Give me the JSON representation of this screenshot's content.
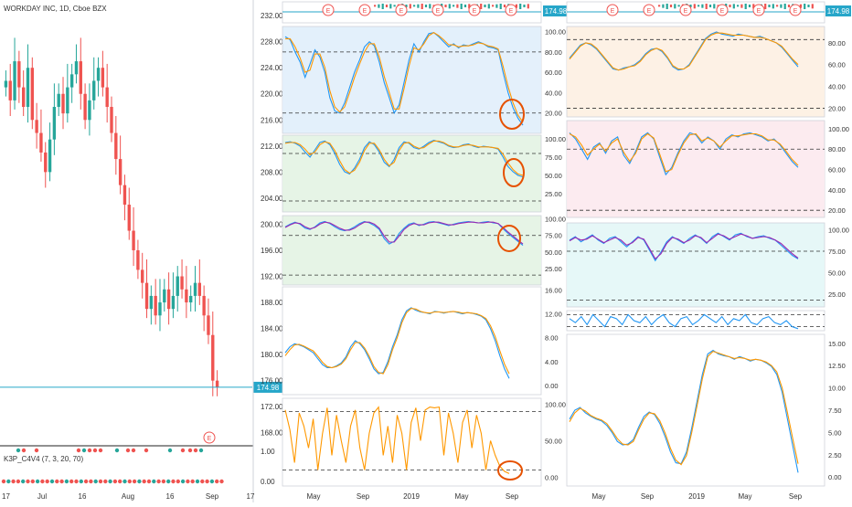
{
  "header": {
    "symbol_title": "WORKDAY INC, 1D, Cboe BZX"
  },
  "indicator": {
    "label": "K3P_C4V4 (7, 3, 20, 70)"
  },
  "colors": {
    "up": "#26a69a",
    "down": "#ef5350",
    "blue_line": "#2196f3",
    "orange_line": "#ff9800",
    "purple_line": "#9c27b0",
    "price_line": "#26a6c9",
    "circle": "#e65100",
    "grid_dash": "#333333"
  },
  "chart_data": [
    {
      "id": "main-price",
      "type": "candlestick",
      "x_ticks": [
        "17",
        "Jul",
        "16",
        "Aug",
        "16",
        "Sep",
        "17"
      ],
      "y_ticks": [
        "232.00",
        "228.00",
        "224.00",
        "220.00",
        "216.00",
        "212.00",
        "208.00",
        "204.00",
        "200.00",
        "196.00",
        "192.00",
        "188.00",
        "184.00",
        "180.00",
        "176.00",
        "172.00",
        "168.00"
      ],
      "ylim": [
        166,
        233
      ],
      "last_price": 174.98,
      "last_price_label": "174.98",
      "earnings_marker": "E",
      "closes": [
        222,
        219,
        225,
        221,
        218,
        224,
        216,
        214,
        211,
        208,
        213,
        218,
        220,
        217,
        221,
        223,
        225,
        220,
        216,
        219,
        222,
        224,
        221,
        218,
        214,
        210,
        206,
        203,
        199,
        196,
        193,
        191,
        187,
        189,
        186,
        188,
        190,
        187,
        189,
        192,
        190,
        188,
        189,
        191,
        189,
        186,
        183,
        176,
        175
      ],
      "indicator_label": "K3P_C4V4 (7, 3, 20, 70)",
      "indicator_ticks": [
        "1.00",
        "0.00"
      ]
    },
    {
      "id": "top-mini-price-left",
      "type": "line",
      "label": "174.98",
      "earnings_markers": [
        "E",
        "E",
        "E",
        "E",
        "E",
        "E"
      ]
    },
    {
      "id": "top-mini-price-right",
      "type": "line",
      "label": "174.98",
      "earnings_markers": [
        "E",
        "E",
        "E",
        "E",
        "E",
        "E"
      ]
    },
    {
      "id": "stoch-left-1",
      "type": "line",
      "y_ticks": [
        "100.00",
        "80.00",
        "60.00",
        "40.00",
        "20.00"
      ],
      "ylim": [
        0,
        105
      ],
      "levels": [
        80,
        20
      ],
      "fill": "#e3f0fb",
      "series": [
        {
          "values": [
            95,
            92,
            80,
            70,
            55,
            68,
            82,
            75,
            60,
            35,
            22,
            20,
            30,
            45,
            60,
            72,
            85,
            90,
            86,
            70,
            50,
            35,
            20,
            28,
            50,
            72,
            88,
            80,
            90,
            98,
            99,
            95,
            90,
            85,
            88,
            84,
            87,
            86,
            88,
            90,
            88,
            85,
            84,
            82,
            60,
            40,
            25,
            15,
            8
          ]
        },
        {
          "values": [
            93,
            93,
            85,
            74,
            60,
            62,
            78,
            78,
            65,
            42,
            26,
            21,
            26,
            40,
            55,
            68,
            80,
            88,
            88,
            75,
            56,
            40,
            24,
            24,
            44,
            66,
            84,
            82,
            88,
            96,
            99,
            96,
            92,
            87,
            87,
            85,
            86,
            86,
            87,
            89,
            88,
            86,
            85,
            83,
            66,
            46,
            30,
            18,
            11
          ]
        }
      ]
    },
    {
      "id": "stoch-left-2",
      "type": "line",
      "y_ticks": [
        "100.00",
        "75.00",
        "50.00",
        "25.00"
      ],
      "ylim": [
        0,
        105
      ],
      "levels": [
        80,
        15
      ],
      "fill": "#e6f4e6",
      "series": [
        {
          "values": [
            95,
            96,
            94,
            90,
            82,
            75,
            85,
            95,
            97,
            92,
            80,
            65,
            55,
            52,
            60,
            72,
            88,
            96,
            92,
            82,
            68,
            62,
            72,
            88,
            96,
            94,
            88,
            86,
            90,
            95,
            98,
            96,
            94,
            90,
            88,
            89,
            92,
            93,
            90,
            88,
            90,
            89,
            88,
            86,
            75,
            62,
            55,
            50,
            48
          ]
        },
        {
          "values": [
            94,
            95,
            95,
            92,
            86,
            78,
            82,
            92,
            96,
            94,
            84,
            70,
            58,
            53,
            57,
            68,
            84,
            94,
            94,
            85,
            72,
            63,
            68,
            84,
            94,
            95,
            90,
            87,
            88,
            93,
            97,
            97,
            95,
            91,
            89,
            89,
            91,
            92,
            91,
            89,
            89,
            89,
            88,
            87,
            79,
            67,
            58,
            52,
            50
          ]
        }
      ]
    },
    {
      "id": "stoch-left-3",
      "type": "line",
      "y_ticks": [
        "100.00",
        "75.00",
        "50.00",
        "25.00"
      ],
      "ylim": [
        0,
        105
      ],
      "levels": [
        75,
        15
      ],
      "fill": "#e6f4e6",
      "series": [
        {
          "values": [
            88,
            92,
            95,
            92,
            86,
            84,
            88,
            94,
            96,
            93,
            88,
            84,
            82,
            84,
            88,
            93,
            96,
            94,
            90,
            84,
            70,
            62,
            66,
            78,
            86,
            92,
            94,
            90,
            92,
            95,
            96,
            94,
            92,
            90,
            92,
            94,
            95,
            96,
            95,
            94,
            95,
            96,
            94,
            93,
            85,
            78,
            72,
            66,
            60
          ]
        },
        {
          "values": [
            87,
            91,
            94,
            93,
            88,
            85,
            87,
            92,
            95,
            94,
            90,
            86,
            83,
            83,
            86,
            91,
            95,
            95,
            92,
            86,
            74,
            65,
            65,
            74,
            84,
            90,
            93,
            91,
            91,
            94,
            95,
            95,
            93,
            91,
            91,
            93,
            94,
            95,
            95,
            94,
            94,
            95,
            95,
            93,
            87,
            80,
            74,
            68,
            62
          ]
        }
      ]
    },
    {
      "id": "macd-left",
      "type": "line",
      "y_ticks": [
        "16.00",
        "12.00",
        "8.00",
        "4.00",
        "0.00"
      ],
      "ylim": [
        -1.5,
        16.5
      ],
      "series": [
        {
          "values": [
            5.5,
            6.5,
            7,
            6.8,
            6.5,
            6,
            5.5,
            4.5,
            3.5,
            3,
            3,
            3.3,
            3.8,
            4.8,
            6.5,
            7.5,
            7,
            6,
            4.5,
            2.8,
            2,
            2.2,
            4,
            6.5,
            8.5,
            11,
            12.5,
            13,
            12.6,
            12.3,
            12.2,
            12,
            12.4,
            12.3,
            12.1,
            12.3,
            12.4,
            12.2,
            12,
            12.2,
            12.1,
            11.9,
            11.6,
            11,
            9.5,
            7.5,
            5,
            2.8,
            1.2
          ]
        },
        {
          "values": [
            5,
            6,
            6.8,
            6.9,
            6.6,
            6.2,
            5.8,
            4.9,
            3.9,
            3.2,
            3,
            3.2,
            3.6,
            4.5,
            6,
            7.2,
            7.2,
            6.3,
            4.9,
            3.2,
            2.2,
            2,
            3.5,
            6,
            8,
            10.5,
            12.2,
            12.9,
            12.8,
            12.4,
            12.2,
            12.1,
            12.3,
            12.3,
            12.2,
            12.3,
            12.4,
            12.3,
            12.1,
            12.2,
            12.1,
            12,
            11.7,
            11.2,
            10,
            8.2,
            5.8,
            3.6,
            2
          ]
        }
      ]
    },
    {
      "id": "osc-left-orange",
      "type": "line",
      "y_ticks": [
        "100.00",
        "50.00",
        "0.00"
      ],
      "ylim": [
        -12,
        108
      ],
      "levels": [
        90,
        10
      ],
      "series": [
        {
          "values": [
            92,
            65,
            20,
            88,
            70,
            40,
            80,
            10,
            60,
            95,
            30,
            85,
            50,
            20,
            70,
            92,
            40,
            10,
            60,
            88,
            96,
            30,
            70,
            20,
            85,
            60,
            10,
            75,
            95,
            50,
            92,
            96,
            95,
            96,
            30,
            88,
            60,
            20,
            75,
            92,
            40,
            85,
            60,
            10,
            50,
            30,
            15,
            8,
            5
          ]
        }
      ]
    },
    {
      "id": "stoch-right-1",
      "type": "line",
      "y_ticks": [
        "80.00",
        "60.00",
        "40.00",
        "20.00"
      ],
      "ylim": [
        12,
        95
      ],
      "levels": [
        83,
        20
      ],
      "fill": "#fdf1e4",
      "series": [
        {
          "values": [
            66,
            72,
            78,
            80,
            78,
            74,
            68,
            62,
            56,
            55,
            57,
            58,
            60,
            64,
            70,
            74,
            75,
            72,
            66,
            58,
            55,
            56,
            60,
            68,
            76,
            84,
            88,
            90,
            88,
            87,
            86,
            88,
            87,
            86,
            85,
            86,
            84,
            82,
            80,
            76,
            70,
            64,
            58
          ]
        },
        {
          "values": [
            65,
            71,
            77,
            80,
            79,
            75,
            69,
            63,
            57,
            55,
            56,
            58,
            59,
            63,
            69,
            73,
            75,
            73,
            67,
            59,
            56,
            56,
            59,
            67,
            75,
            83,
            87,
            89,
            89,
            88,
            87,
            87,
            87,
            86,
            85,
            85,
            84,
            82,
            80,
            77,
            71,
            65,
            60
          ]
        }
      ]
    },
    {
      "id": "stoch-right-2",
      "type": "line",
      "y_ticks": [
        "100.00",
        "80.00",
        "60.00",
        "40.00",
        "20.00"
      ],
      "ylim": [
        13,
        108
      ],
      "levels": [
        80,
        20
      ],
      "fill": "#fcebef",
      "series": [
        {
          "values": [
            96,
            90,
            80,
            70,
            82,
            86,
            76,
            88,
            92,
            74,
            66,
            78,
            92,
            96,
            90,
            72,
            55,
            62,
            76,
            88,
            96,
            94,
            86,
            92,
            88,
            80,
            90,
            94,
            92,
            95,
            96,
            94,
            92,
            88,
            90,
            84,
            76,
            68,
            62
          ]
        },
        {
          "values": [
            95,
            92,
            84,
            74,
            80,
            85,
            78,
            86,
            90,
            77,
            68,
            76,
            90,
            95,
            91,
            75,
            58,
            60,
            74,
            86,
            94,
            95,
            88,
            91,
            88,
            82,
            88,
            93,
            93,
            94,
            95,
            95,
            93,
            89,
            89,
            85,
            78,
            70,
            64
          ]
        }
      ]
    },
    {
      "id": "stoch-right-3",
      "type": "line",
      "y_ticks": [
        "100.00",
        "75.00",
        "50.00",
        "25.00"
      ],
      "ylim": [
        10,
        108
      ],
      "levels": [
        75,
        18
      ],
      "fill": "#e6f7f7",
      "series": [
        {
          "values": [
            88,
            92,
            86,
            90,
            94,
            88,
            84,
            90,
            92,
            86,
            80,
            86,
            92,
            88,
            76,
            64,
            74,
            86,
            92,
            88,
            84,
            90,
            94,
            90,
            84,
            92,
            96,
            92,
            88,
            94,
            96,
            92,
            90,
            92,
            93,
            90,
            88,
            82,
            76,
            70,
            66
          ]
        },
        {
          "values": [
            87,
            91,
            88,
            89,
            93,
            89,
            85,
            88,
            91,
            88,
            82,
            85,
            91,
            89,
            78,
            66,
            72,
            84,
            91,
            89,
            85,
            88,
            93,
            91,
            85,
            90,
            95,
            93,
            89,
            92,
            95,
            93,
            90,
            91,
            92,
            91,
            88,
            84,
            78,
            72,
            67
          ]
        }
      ]
    },
    {
      "id": "mini-osc-right",
      "type": "line",
      "levels": [
        80,
        20
      ],
      "series": [
        {
          "values": [
            60,
            40,
            70,
            30,
            80,
            50,
            20,
            70,
            60,
            30,
            80,
            50,
            40,
            70,
            30,
            60,
            80,
            40,
            20,
            60,
            70,
            30,
            50,
            80,
            60,
            40,
            70,
            30,
            60,
            50,
            80,
            40,
            30,
            60,
            70,
            40,
            30,
            50,
            20,
            10
          ]
        }
      ]
    },
    {
      "id": "macd-right",
      "type": "line",
      "y_ticks": [
        "15.00",
        "12.50",
        "10.00",
        "7.50",
        "5.00",
        "2.50",
        "0.00"
      ],
      "ylim": [
        -1,
        16
      ],
      "series": [
        {
          "values": [
            6.5,
            7.5,
            7.8,
            7.2,
            6.8,
            6.5,
            6.3,
            5.8,
            5,
            4,
            3.6,
            3.7,
            4.2,
            5.6,
            6.8,
            7.3,
            7,
            6,
            4.5,
            2.8,
            1.6,
            1.5,
            2.8,
            5.5,
            8.5,
            11.5,
            13.8,
            14.2,
            13.8,
            13.6,
            13.5,
            13.2,
            13.5,
            13.3,
            13,
            13.2,
            13.1,
            12.8,
            12.4,
            11.5,
            9.5,
            6.5,
            3.5,
            0.5
          ]
        },
        {
          "values": [
            6.2,
            7.2,
            7.7,
            7.4,
            6.9,
            6.6,
            6.4,
            6,
            5.2,
            4.3,
            3.7,
            3.6,
            4,
            5.3,
            6.5,
            7.2,
            7.1,
            6.3,
            4.9,
            3.2,
            1.9,
            1.4,
            2.4,
            5,
            8,
            11,
            13.5,
            14.1,
            13.9,
            13.7,
            13.5,
            13.3,
            13.4,
            13.3,
            13.1,
            13.2,
            13.1,
            12.9,
            12.5,
            11.8,
            10,
            7.2,
            4.3,
            1.5
          ]
        }
      ]
    }
  ],
  "axis_labels": {
    "middle_x": [
      "May",
      "Sep",
      "2019",
      "May",
      "Sep"
    ],
    "right_x": [
      "May",
      "Sep",
      "2019",
      "May",
      "Sep"
    ],
    "top_mini_ticks": [
      "174.98"
    ]
  }
}
